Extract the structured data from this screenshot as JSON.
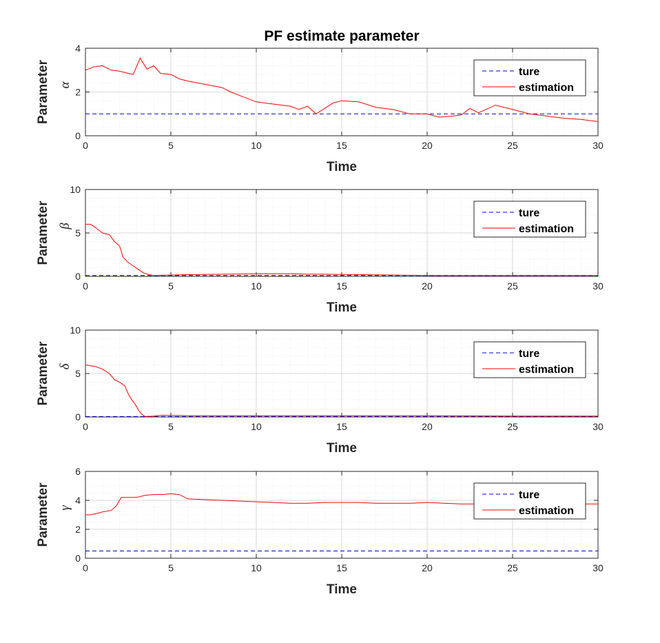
{
  "figure": {
    "title": "PF estimate parameter"
  },
  "colors": {
    "true_line": "#0000cc",
    "estimation_line": "#ff0000",
    "axis": "#262626",
    "grid_major": "#d9d9d9",
    "grid_minor": "#ececec"
  },
  "chart_data": [
    {
      "type": "line",
      "xlabel": "Time",
      "ylabel": "Parameter",
      "ysymbol": "α",
      "xlim": [
        0,
        30
      ],
      "ylim": [
        0,
        4
      ],
      "xticks": [
        0,
        5,
        10,
        15,
        20,
        25,
        30
      ],
      "yticks": [
        0,
        2,
        4
      ],
      "grid": true,
      "legend_position": "top-right",
      "series": [
        {
          "name": "ture",
          "style": "dashed",
          "x": [
            0,
            30
          ],
          "y": [
            1,
            1
          ]
        },
        {
          "name": "estimation",
          "style": "solid",
          "x": [
            0,
            0.5,
            1,
            1.5,
            2,
            2.5,
            2.8,
            3.2,
            3.6,
            4,
            4.4,
            5,
            5.5,
            6,
            7,
            8,
            8.5,
            9,
            10,
            11,
            12,
            12.5,
            13,
            13.5,
            14,
            14.5,
            15,
            16,
            17,
            18,
            19,
            20,
            20.7,
            21.5,
            22,
            22.5,
            23,
            24,
            25,
            26,
            27,
            28,
            29,
            30
          ],
          "y": [
            3.0,
            3.15,
            3.2,
            3.0,
            2.95,
            2.85,
            2.8,
            3.55,
            3.05,
            3.2,
            2.85,
            2.8,
            2.6,
            2.5,
            2.35,
            2.2,
            2.0,
            1.85,
            1.55,
            1.45,
            1.35,
            1.2,
            1.35,
            1.0,
            1.25,
            1.5,
            1.6,
            1.55,
            1.3,
            1.2,
            1.0,
            1.0,
            0.85,
            0.9,
            0.95,
            1.25,
            1.05,
            1.4,
            1.2,
            1.0,
            0.9,
            0.8,
            0.75,
            0.65
          ]
        }
      ]
    },
    {
      "type": "line",
      "xlabel": "Time",
      "ylabel": "Parameter",
      "ysymbol": "β",
      "xlim": [
        0,
        30
      ],
      "ylim": [
        0,
        10
      ],
      "xticks": [
        0,
        5,
        10,
        15,
        20,
        25,
        30
      ],
      "yticks": [
        0,
        5,
        10
      ],
      "grid": true,
      "legend_position": "top-right",
      "series": [
        {
          "name": "ture",
          "style": "dashed",
          "x": [
            0,
            30
          ],
          "y": [
            0.1,
            0.1
          ]
        },
        {
          "name": "estimation",
          "style": "solid",
          "x": [
            0,
            0.3,
            0.6,
            1,
            1.4,
            1.7,
            2,
            2.2,
            2.5,
            2.8,
            3.1,
            3.4,
            3.7,
            4,
            5,
            6,
            8,
            10,
            11,
            12,
            13,
            14,
            16,
            18,
            20,
            22,
            25,
            28,
            30
          ],
          "y": [
            6.0,
            6.0,
            5.6,
            5.0,
            4.8,
            4.0,
            3.5,
            2.2,
            1.6,
            1.2,
            0.8,
            0.4,
            0.2,
            0.1,
            0.15,
            0.2,
            0.25,
            0.3,
            0.3,
            0.3,
            0.25,
            0.25,
            0.2,
            0.15,
            0.1,
            0.1,
            0.1,
            0.1,
            0.1
          ]
        }
      ]
    },
    {
      "type": "line",
      "xlabel": "Time",
      "ylabel": "Parameter",
      "ysymbol": "δ",
      "xlim": [
        0,
        30
      ],
      "ylim": [
        0,
        10
      ],
      "xticks": [
        0,
        5,
        10,
        15,
        20,
        25,
        30
      ],
      "yticks": [
        0,
        5,
        10
      ],
      "grid": true,
      "legend_position": "top-right",
      "series": [
        {
          "name": "ture",
          "style": "dashed",
          "x": [
            0,
            30
          ],
          "y": [
            0.05,
            0.05
          ]
        },
        {
          "name": "estimation",
          "style": "solid",
          "x": [
            0,
            0.3,
            0.6,
            1,
            1.4,
            1.7,
            2,
            2.3,
            2.5,
            2.7,
            2.9,
            3.1,
            3.3,
            3.5,
            4,
            4.5,
            6,
            8,
            10,
            15,
            20,
            25,
            30
          ],
          "y": [
            6.0,
            5.9,
            5.8,
            5.5,
            5.0,
            4.3,
            4.0,
            3.6,
            2.7,
            2.0,
            1.5,
            0.8,
            0.3,
            0.05,
            0.1,
            0.2,
            0.15,
            0.15,
            0.15,
            0.15,
            0.15,
            0.1,
            0.1
          ]
        }
      ]
    },
    {
      "type": "line",
      "xlabel": "Time",
      "ylabel": "Parameter",
      "ysymbol": "γ",
      "xlim": [
        0,
        30
      ],
      "ylim": [
        0,
        6
      ],
      "xticks": [
        0,
        5,
        10,
        15,
        20,
        25,
        30
      ],
      "yticks": [
        0,
        2,
        4,
        6
      ],
      "grid": true,
      "legend_position": "top-right",
      "series": [
        {
          "name": "ture",
          "style": "dashed",
          "x": [
            0,
            30
          ],
          "y": [
            0.5,
            0.5
          ]
        },
        {
          "name": "estimation",
          "style": "solid",
          "x": [
            0,
            0.3,
            0.7,
            1,
            1.5,
            1.8,
            2.1,
            2.5,
            3,
            3.5,
            4,
            4.5,
            5,
            5.5,
            6,
            7,
            8,
            9,
            10,
            11,
            12,
            13,
            14,
            15,
            16,
            17,
            18,
            19,
            20,
            21,
            22,
            23,
            24,
            25,
            26,
            27,
            28,
            29,
            30
          ],
          "y": [
            3.0,
            3.0,
            3.1,
            3.2,
            3.3,
            3.6,
            4.2,
            4.2,
            4.2,
            4.35,
            4.4,
            4.4,
            4.45,
            4.4,
            4.1,
            4.05,
            4.0,
            3.95,
            3.9,
            3.85,
            3.8,
            3.8,
            3.85,
            3.85,
            3.85,
            3.8,
            3.8,
            3.8,
            3.85,
            3.8,
            3.75,
            3.75,
            3.8,
            3.8,
            3.8,
            3.8,
            3.75,
            3.75,
            3.75
          ]
        }
      ]
    }
  ]
}
